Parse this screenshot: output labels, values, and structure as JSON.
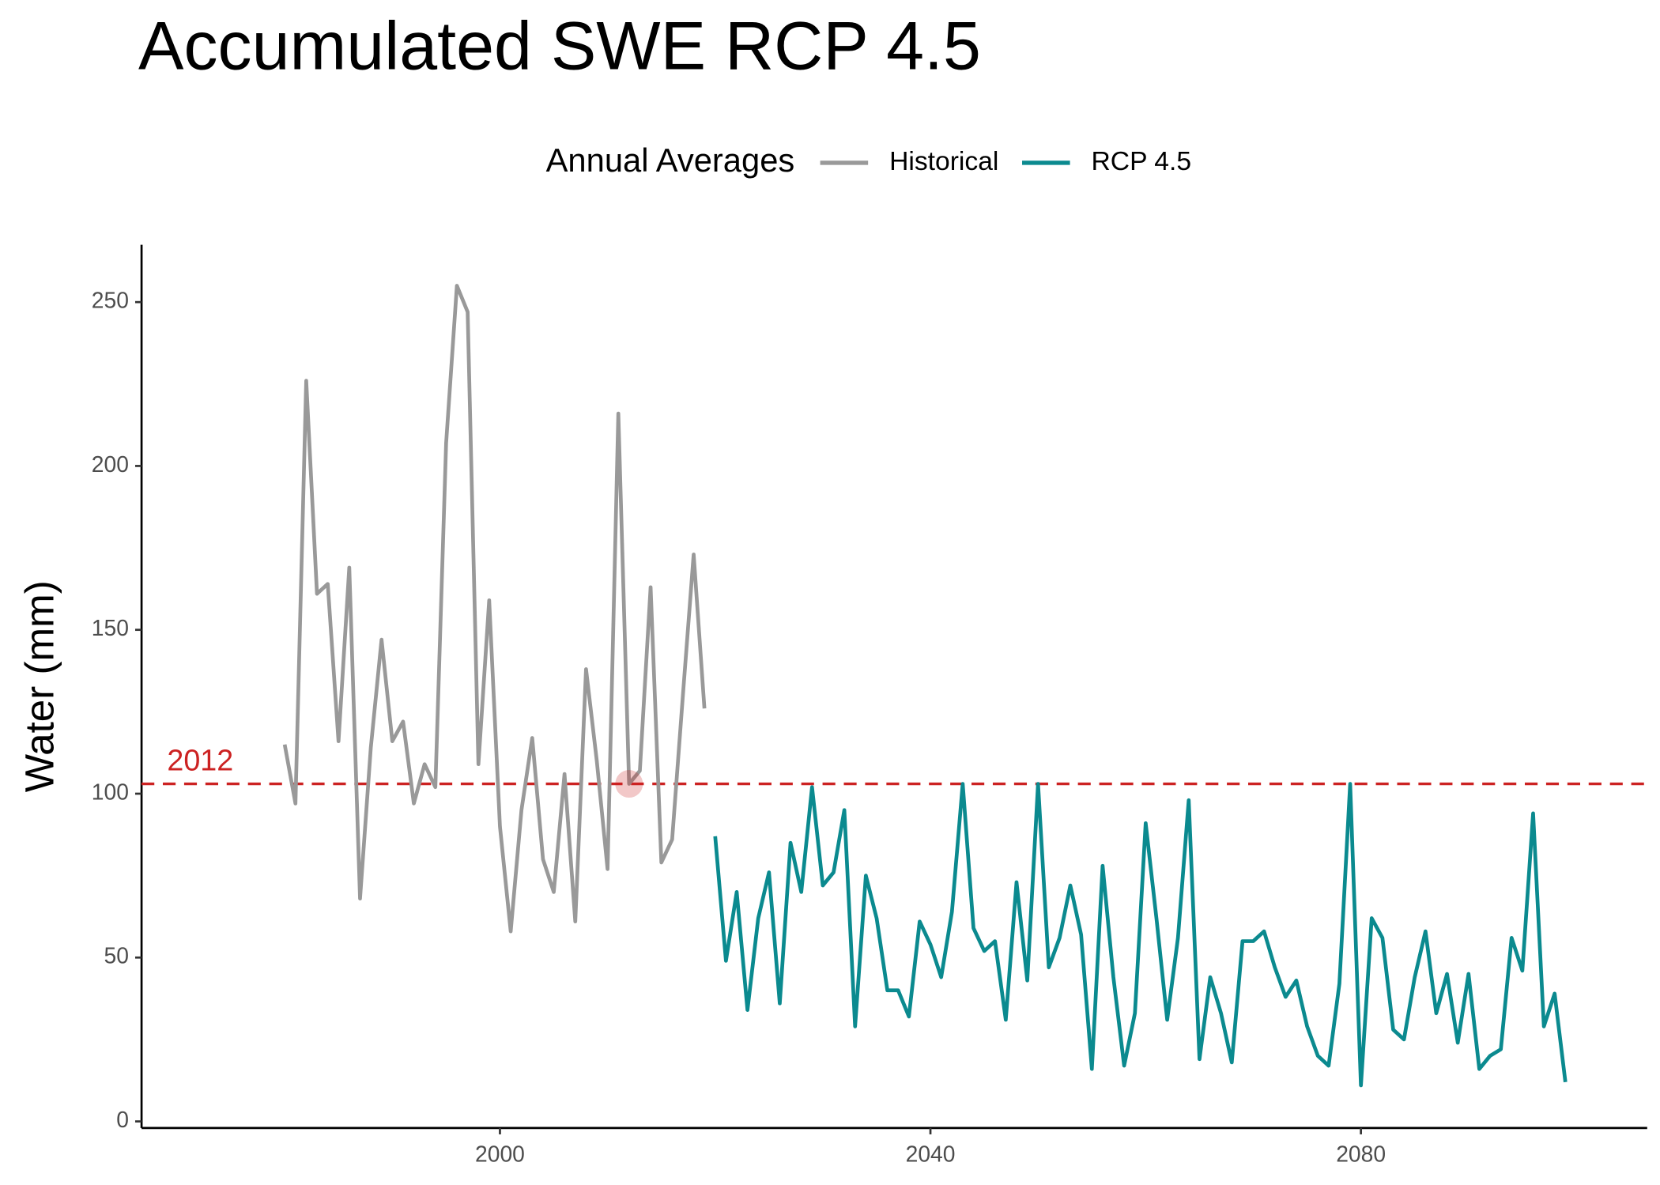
{
  "chart_data": {
    "type": "line",
    "title": "Accumulated SWE RCP 4.5",
    "y_label": "Water (mm)",
    "legend_title": "Annual Averages",
    "legend_position": "top",
    "grid": false,
    "series": [
      {
        "name": "Historical",
        "color": "#999999",
        "x": [
          1980,
          1981,
          1982,
          1983,
          1984,
          1985,
          1986,
          1987,
          1988,
          1989,
          1990,
          1991,
          1992,
          1993,
          1994,
          1995,
          1996,
          1997,
          1998,
          1999,
          2000,
          2001,
          2002,
          2003,
          2004,
          2005,
          2006,
          2007,
          2008,
          2009,
          2010,
          2011,
          2012,
          2013,
          2014,
          2015,
          2016,
          2017,
          2018,
          2019
        ],
        "values": [
          115,
          97,
          226,
          161,
          164,
          116,
          169,
          68,
          114,
          147,
          116,
          122,
          97,
          109,
          102,
          207,
          255,
          247,
          109,
          159,
          90,
          58,
          95,
          117,
          80,
          70,
          106,
          61,
          138,
          110,
          77,
          216,
          103,
          107,
          163,
          79,
          86,
          130,
          173,
          126
        ]
      },
      {
        "name": "RCP 4.5",
        "color": "#0b8a8f",
        "x": [
          2020,
          2021,
          2022,
          2023,
          2024,
          2025,
          2026,
          2027,
          2028,
          2029,
          2030,
          2031,
          2032,
          2033,
          2034,
          2035,
          2036,
          2037,
          2038,
          2039,
          2040,
          2041,
          2042,
          2043,
          2044,
          2045,
          2046,
          2047,
          2048,
          2049,
          2050,
          2051,
          2052,
          2053,
          2054,
          2055,
          2056,
          2057,
          2058,
          2059,
          2060,
          2061,
          2062,
          2063,
          2064,
          2065,
          2066,
          2067,
          2068,
          2069,
          2070,
          2071,
          2072,
          2073,
          2074,
          2075,
          2076,
          2077,
          2078,
          2079,
          2080,
          2081,
          2082,
          2083,
          2084,
          2085,
          2086,
          2087,
          2088,
          2089,
          2090,
          2091,
          2092,
          2093,
          2094,
          2095,
          2096,
          2097,
          2098,
          2099
        ],
        "values": [
          87,
          49,
          70,
          34,
          62,
          76,
          36,
          85,
          70,
          102,
          72,
          76,
          95,
          29,
          75,
          62,
          40,
          40,
          32,
          61,
          54,
          44,
          64,
          103,
          59,
          52,
          55,
          31,
          73,
          43,
          103,
          47,
          56,
          72,
          57,
          16,
          78,
          44,
          17,
          33,
          91,
          62,
          31,
          56,
          98,
          19,
          44,
          33,
          18,
          55,
          55,
          58,
          47,
          38,
          43,
          29,
          20,
          17,
          42,
          103,
          11,
          62,
          56,
          28,
          25,
          44,
          58,
          33,
          45,
          24,
          45,
          16,
          20,
          22,
          56,
          46,
          94,
          29,
          39,
          12
        ]
      }
    ],
    "annotation": {
      "label": "2012",
      "x": 2012,
      "y": 103,
      "color": "#cc2222"
    },
    "xlim": [
      1966.7,
      2106.6
    ],
    "ylim": [
      -2,
      267.5
    ],
    "xticks": [
      2000,
      2040,
      2080
    ],
    "yticks": [
      0,
      50,
      100,
      150,
      200,
      250
    ]
  }
}
